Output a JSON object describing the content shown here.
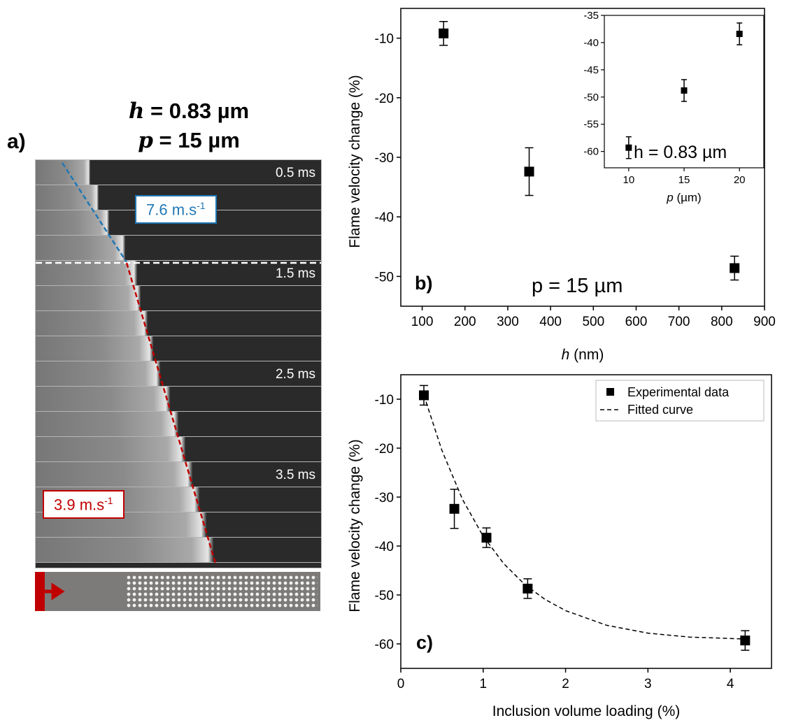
{
  "panel_a": {
    "letter": "a)",
    "heading_h_var": "h",
    "heading_h_value": " = 0.83 µm",
    "heading_p_var": "p",
    "heading_p_value": " = 15 µm",
    "timestamps": [
      "0.5 ms",
      "1.5 ms",
      "2.5 ms",
      "3.5 ms"
    ],
    "velocity_fast": "7.6 m.s",
    "velocity_slow": "3.9 m.s",
    "velocity_exponent": "-1",
    "colors": {
      "fast_line": "#1f77b4",
      "slow_line": "#c00000",
      "schematic_front": "#c00000"
    }
  },
  "chart_data": [
    {
      "type": "scatter",
      "panel_label": "b)",
      "annotation": "p = 15 µm",
      "xlabel_var": "h",
      "xlabel_unit": " (nm)",
      "ylabel": "Flame velocity change (%)",
      "xlim": [
        50,
        900
      ],
      "ylim": [
        -55,
        -5
      ],
      "xticks": [
        100,
        200,
        300,
        400,
        500,
        600,
        700,
        800,
        900
      ],
      "yticks": [
        -10,
        -20,
        -30,
        -40,
        -50
      ],
      "points": [
        {
          "x": 150,
          "y": -9.2,
          "err": 2.0
        },
        {
          "x": 350,
          "y": -32.4,
          "err": 4.0
        },
        {
          "x": 830,
          "y": -48.6,
          "err": 2.0
        }
      ]
    },
    {
      "type": "scatter",
      "role": "inset",
      "annotation": "h = 0.83 µm",
      "xlabel_var": "p",
      "xlabel_unit": " (µm)",
      "xlim": [
        7.8,
        22.2
      ],
      "ylim": [
        -63,
        -35
      ],
      "xticks": [
        10,
        15,
        20
      ],
      "yticks": [
        -35,
        -40,
        -45,
        -50,
        -55,
        -60
      ],
      "points": [
        {
          "x": 10,
          "y": -59.3,
          "err": 2.0
        },
        {
          "x": 15,
          "y": -48.8,
          "err": 2.0
        },
        {
          "x": 20,
          "y": -38.4,
          "err": 2.0
        }
      ]
    },
    {
      "type": "scatter",
      "panel_label": "c)",
      "xlabel": "Inclusion volume loading (%)",
      "ylabel": "Flame velocity change (%)",
      "xlim": [
        0,
        4.5
      ],
      "ylim": [
        -65,
        -5
      ],
      "xticks": [
        0,
        1,
        2,
        3,
        4
      ],
      "yticks": [
        -10,
        -20,
        -30,
        -40,
        -50,
        -60
      ],
      "legend": [
        "Experimental data",
        "Fitted curve"
      ],
      "legend_position": "top-right",
      "points": [
        {
          "x": 0.28,
          "y": -9.2,
          "err": 2.0
        },
        {
          "x": 0.65,
          "y": -32.4,
          "err": 4.0
        },
        {
          "x": 1.04,
          "y": -38.3,
          "err": 2.0
        },
        {
          "x": 1.54,
          "y": -48.7,
          "err": 2.0
        },
        {
          "x": 4.18,
          "y": -59.3,
          "err": 2.0
        }
      ],
      "fit": {
        "x": [
          0.28,
          0.5,
          0.75,
          1.0,
          1.25,
          1.5,
          1.75,
          2.0,
          2.5,
          3.0,
          3.5,
          4.18
        ],
        "y": [
          -9.2,
          -20.5,
          -30.5,
          -38.0,
          -43.6,
          -47.8,
          -50.9,
          -53.2,
          -56.2,
          -57.8,
          -58.6,
          -59.0
        ]
      }
    }
  ]
}
